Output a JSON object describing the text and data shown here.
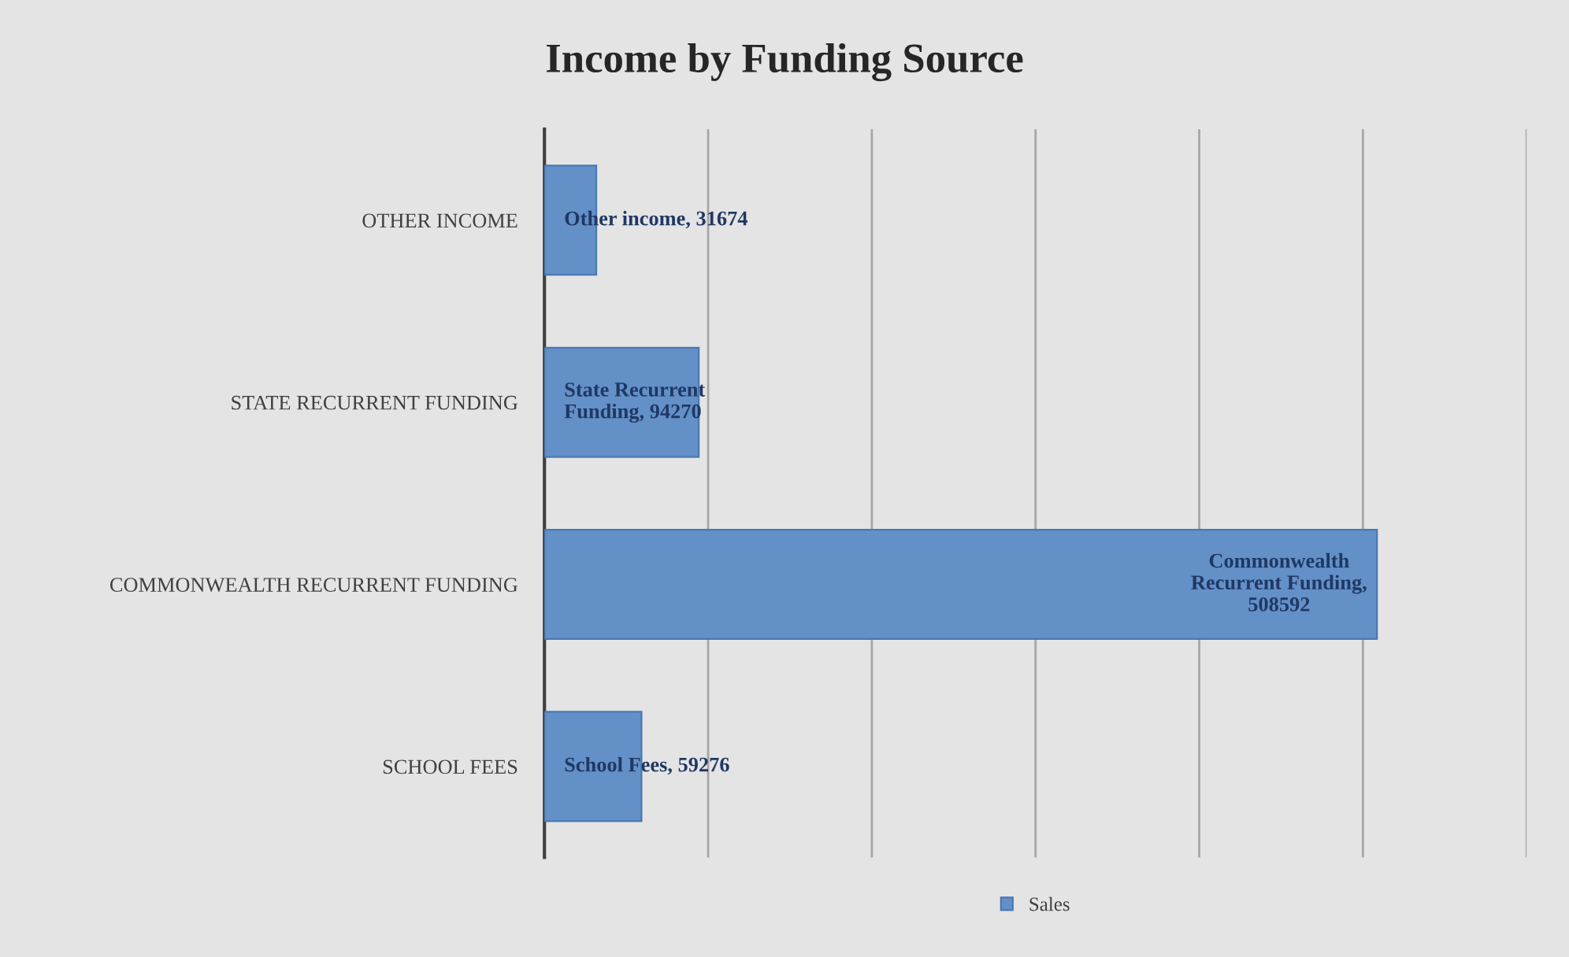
{
  "chart_data": {
    "type": "bar",
    "orientation": "horizontal",
    "title": "Income by Funding Source",
    "categories": [
      "OTHER INCOME",
      "STATE RECURRENT FUNDING",
      "COMMONWEALTH RECURRENT FUNDING",
      "SCHOOL FEES"
    ],
    "series": [
      {
        "name": "Sales",
        "color": "#6490c8",
        "values": [
          31674,
          94270,
          508592,
          59276
        ],
        "value_labels": [
          "Other income, 31674",
          "State Recurrent\nFunding, 94270",
          "Commonwealth\nRecurrent Funding,\n508592",
          "School Fees, 59276"
        ]
      }
    ],
    "xlim": [
      0,
      600000
    ],
    "xticks": [
      {
        "value": 0,
        "label": null
      },
      {
        "value": 100000,
        "label": null
      },
      {
        "value": 200000,
        "label": null
      },
      {
        "value": 300000,
        "label": null
      },
      {
        "value": 400000,
        "label": null
      },
      {
        "value": 500000,
        "label": null
      },
      {
        "value": 600000,
        "label": null
      }
    ],
    "tick_labels": "y",
    "grid": "x",
    "legend": "bottom"
  }
}
